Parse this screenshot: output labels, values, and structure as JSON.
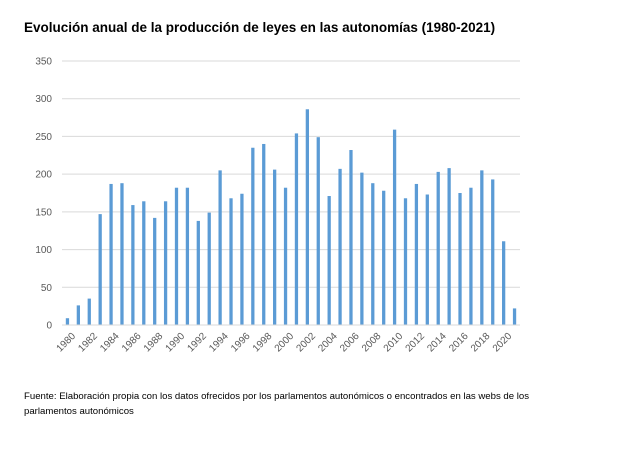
{
  "chart_data": {
    "type": "bar",
    "title": "Evolución anual de la producción de leyes en las autonomías (1980-2021)",
    "source": "Fuente: Elaboración propia con los datos ofrecidos por los parlamentos autonómicos o encontrados en las webs de los parlamentos autonómicos",
    "xlabel": "",
    "ylabel": "",
    "ylim": [
      0,
      350
    ],
    "yticks": [
      0,
      50,
      100,
      150,
      200,
      250,
      300,
      350
    ],
    "grid": true,
    "legend": "none",
    "bar_color": "#5b9bd5",
    "categories": [
      "1980",
      "1981",
      "1982",
      "1983",
      "1984",
      "1985",
      "1986",
      "1987",
      "1988",
      "1989",
      "1990",
      "1991",
      "1992",
      "1993",
      "1994",
      "1995",
      "1996",
      "1997",
      "1998",
      "1999",
      "2000",
      "2001",
      "2002",
      "2003",
      "2004",
      "2005",
      "2006",
      "2007",
      "2008",
      "2009",
      "2010",
      "2011",
      "2012",
      "2013",
      "2014",
      "2015",
      "2016",
      "2017",
      "2018",
      "2019",
      "2020",
      "2021"
    ],
    "values": [
      9,
      26,
      35,
      147,
      187,
      188,
      159,
      164,
      142,
      164,
      182,
      182,
      138,
      149,
      205,
      168,
      174,
      235,
      240,
      206,
      182,
      254,
      286,
      249,
      171,
      207,
      232,
      202,
      188,
      178,
      259,
      168,
      187,
      173,
      203,
      208,
      175,
      182,
      205,
      193,
      111,
      22
    ],
    "x_tick_labels": [
      "1980",
      "1982",
      "1984",
      "1986",
      "1988",
      "1990",
      "1992",
      "1994",
      "1996",
      "1998",
      "2000",
      "2002",
      "2004",
      "2006",
      "2008",
      "2010",
      "2012",
      "2014",
      "2016",
      "2018",
      "2020"
    ]
  }
}
